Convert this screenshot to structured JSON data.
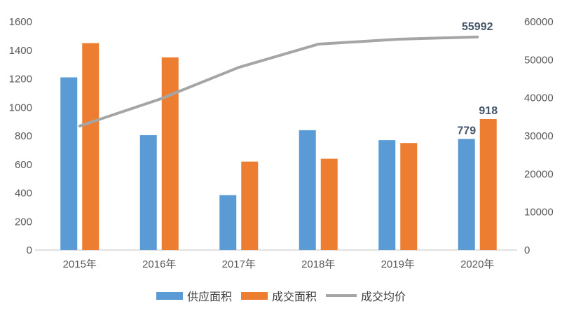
{
  "chart_data": {
    "type": "combo",
    "title": "",
    "categories": [
      "2015年",
      "2016年",
      "2017年",
      "2018年",
      "2019年",
      "2020年"
    ],
    "series": [
      {
        "name": "供应面积",
        "chart": "bar",
        "axis": "left",
        "color": "#5B9BD5",
        "values": [
          1210,
          805,
          385,
          840,
          770,
          779
        ]
      },
      {
        "name": "成交面积",
        "chart": "bar",
        "axis": "left",
        "color": "#ED7D31",
        "values": [
          1450,
          1350,
          620,
          640,
          750,
          918
        ]
      },
      {
        "name": "成交均价",
        "chart": "line",
        "axis": "right",
        "color": "#A5A5A5",
        "values": [
          32600,
          39600,
          48000,
          54100,
          55400,
          55992
        ]
      }
    ],
    "left_axis": {
      "min": 0,
      "max": 1600,
      "step": 200,
      "tick_labels": [
        "0",
        "200",
        "400",
        "600",
        "800",
        "1000",
        "1200",
        "1400",
        "1600"
      ]
    },
    "right_axis": {
      "min": 0,
      "max": 60000,
      "step": 10000,
      "tick_labels": [
        "0",
        "10000",
        "20000",
        "30000",
        "40000",
        "50000",
        "60000"
      ]
    },
    "data_labels": [
      {
        "series_index": 0,
        "category_index": 5,
        "text": "779"
      },
      {
        "series_index": 1,
        "category_index": 5,
        "text": "918"
      },
      {
        "series_index": 2,
        "category_index": 5,
        "text": "55992"
      }
    ],
    "legend": {
      "position": "bottom",
      "items": [
        "供应面积",
        "成交面积",
        "成交均价"
      ]
    },
    "grid": false,
    "colors": {
      "axis_text": "#595959",
      "category_text": "#595959",
      "data_label_text": "#44546A",
      "baseline": "#D9D9D9",
      "background": "#FFFFFF"
    }
  }
}
